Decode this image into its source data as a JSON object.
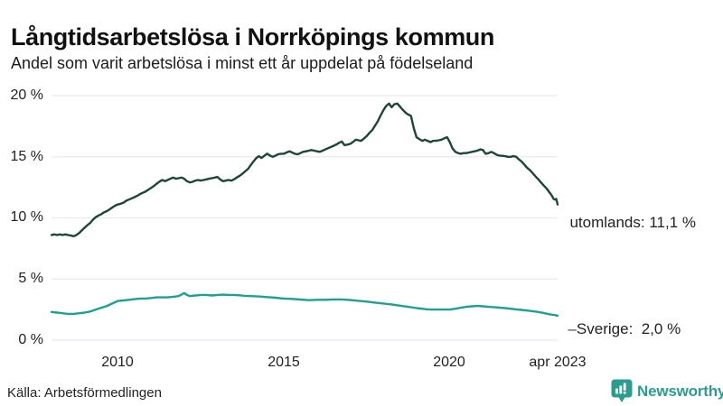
{
  "header": {
    "title": "Långtidsarbetslösa i Norrköpings kommun",
    "subtitle": "Andel som varit arbetslösa i minst ett år uppdelat på födelseland"
  },
  "footer": {
    "source": "Källa: Arbetsförmedlingen",
    "brand": "Newsworthy"
  },
  "colors": {
    "series_utomlands": "#1d4638",
    "series_sverige": "#1fa191",
    "gridline": "#e9e9f0",
    "text": "#222222",
    "logo_teal": "#2a9d8f"
  },
  "chart_data": {
    "type": "line",
    "title": "Långtidsarbetslösa i Norrköpings kommun",
    "subtitle": "Andel som varit arbetslösa i minst ett år uppdelat på födelseland",
    "xlabel": "",
    "ylabel": "",
    "unit": "%",
    "grid": "horizontal",
    "legend_position": "end-of-line-labels",
    "xlim": [
      2008.0,
      2023.25
    ],
    "ylim": [
      0,
      20
    ],
    "yticks": [
      {
        "value": 20,
        "label": "20 %"
      },
      {
        "value": 15,
        "label": "15 %"
      },
      {
        "value": 10,
        "label": "10 %"
      },
      {
        "value": 5,
        "label": "5 %"
      },
      {
        "value": 0,
        "label": "0 %"
      }
    ],
    "xticks": [
      {
        "value": 2010,
        "label": "2010"
      },
      {
        "value": 2015,
        "label": "2015"
      },
      {
        "value": 2020,
        "label": "2020"
      },
      {
        "value": 2023.25,
        "label": "apr 2023"
      }
    ],
    "series": [
      {
        "name": "utomlands",
        "label": "utomlands: 11,1 %",
        "label_prefix": "",
        "last_value": "11,1 %",
        "color": "#1d4638",
        "points": [
          [
            2008.0,
            8.6
          ],
          [
            2008.08,
            8.65
          ],
          [
            2008.17,
            8.6
          ],
          [
            2008.25,
            8.65
          ],
          [
            2008.33,
            8.6
          ],
          [
            2008.42,
            8.65
          ],
          [
            2008.5,
            8.6
          ],
          [
            2008.58,
            8.55
          ],
          [
            2008.67,
            8.5
          ],
          [
            2008.75,
            8.6
          ],
          [
            2008.83,
            8.75
          ],
          [
            2008.92,
            9.0
          ],
          [
            2009.0,
            9.2
          ],
          [
            2009.08,
            9.4
          ],
          [
            2009.17,
            9.6
          ],
          [
            2009.25,
            9.85
          ],
          [
            2009.33,
            10.05
          ],
          [
            2009.42,
            10.2
          ],
          [
            2009.5,
            10.3
          ],
          [
            2009.58,
            10.45
          ],
          [
            2009.67,
            10.55
          ],
          [
            2009.75,
            10.7
          ],
          [
            2009.83,
            10.85
          ],
          [
            2009.92,
            11.0
          ],
          [
            2010.0,
            11.1
          ],
          [
            2010.08,
            11.15
          ],
          [
            2010.17,
            11.25
          ],
          [
            2010.25,
            11.4
          ],
          [
            2010.33,
            11.5
          ],
          [
            2010.42,
            11.6
          ],
          [
            2010.5,
            11.7
          ],
          [
            2010.58,
            11.8
          ],
          [
            2010.67,
            11.95
          ],
          [
            2010.75,
            12.05
          ],
          [
            2010.83,
            12.15
          ],
          [
            2010.92,
            12.3
          ],
          [
            2011.0,
            12.45
          ],
          [
            2011.08,
            12.6
          ],
          [
            2011.17,
            12.8
          ],
          [
            2011.25,
            12.95
          ],
          [
            2011.33,
            13.1
          ],
          [
            2011.42,
            13.0
          ],
          [
            2011.5,
            13.1
          ],
          [
            2011.58,
            13.2
          ],
          [
            2011.67,
            13.3
          ],
          [
            2011.75,
            13.2
          ],
          [
            2011.83,
            13.25
          ],
          [
            2011.92,
            13.3
          ],
          [
            2012.0,
            13.2
          ],
          [
            2012.08,
            13.0
          ],
          [
            2012.17,
            12.9
          ],
          [
            2012.25,
            12.95
          ],
          [
            2012.33,
            13.05
          ],
          [
            2012.42,
            13.1
          ],
          [
            2012.5,
            13.05
          ],
          [
            2012.58,
            13.1
          ],
          [
            2012.67,
            13.15
          ],
          [
            2012.75,
            13.2
          ],
          [
            2012.83,
            13.25
          ],
          [
            2012.92,
            13.3
          ],
          [
            2013.0,
            13.35
          ],
          [
            2013.08,
            13.15
          ],
          [
            2013.17,
            13.0
          ],
          [
            2013.25,
            13.05
          ],
          [
            2013.33,
            13.1
          ],
          [
            2013.42,
            13.05
          ],
          [
            2013.5,
            13.15
          ],
          [
            2013.58,
            13.3
          ],
          [
            2013.67,
            13.45
          ],
          [
            2013.75,
            13.6
          ],
          [
            2013.83,
            13.8
          ],
          [
            2013.92,
            14.0
          ],
          [
            2014.0,
            14.3
          ],
          [
            2014.08,
            14.6
          ],
          [
            2014.17,
            14.9
          ],
          [
            2014.25,
            15.05
          ],
          [
            2014.33,
            14.9
          ],
          [
            2014.42,
            15.1
          ],
          [
            2014.5,
            15.25
          ],
          [
            2014.58,
            15.1
          ],
          [
            2014.67,
            15.0
          ],
          [
            2014.75,
            15.1
          ],
          [
            2014.83,
            15.2
          ],
          [
            2014.92,
            15.25
          ],
          [
            2015.0,
            15.25
          ],
          [
            2015.08,
            15.35
          ],
          [
            2015.17,
            15.45
          ],
          [
            2015.25,
            15.35
          ],
          [
            2015.33,
            15.25
          ],
          [
            2015.42,
            15.2
          ],
          [
            2015.5,
            15.3
          ],
          [
            2015.58,
            15.4
          ],
          [
            2015.67,
            15.45
          ],
          [
            2015.75,
            15.5
          ],
          [
            2015.83,
            15.55
          ],
          [
            2015.92,
            15.5
          ],
          [
            2016.0,
            15.45
          ],
          [
            2016.08,
            15.4
          ],
          [
            2016.17,
            15.5
          ],
          [
            2016.25,
            15.6
          ],
          [
            2016.33,
            15.7
          ],
          [
            2016.42,
            15.8
          ],
          [
            2016.5,
            15.9
          ],
          [
            2016.58,
            16.0
          ],
          [
            2016.67,
            16.15
          ],
          [
            2016.75,
            16.25
          ],
          [
            2016.83,
            15.95
          ],
          [
            2016.92,
            16.0
          ],
          [
            2017.0,
            16.05
          ],
          [
            2017.08,
            16.2
          ],
          [
            2017.17,
            16.4
          ],
          [
            2017.25,
            16.35
          ],
          [
            2017.33,
            16.3
          ],
          [
            2017.42,
            16.5
          ],
          [
            2017.5,
            16.7
          ],
          [
            2017.58,
            16.95
          ],
          [
            2017.67,
            17.2
          ],
          [
            2017.75,
            17.55
          ],
          [
            2017.83,
            17.9
          ],
          [
            2017.92,
            18.4
          ],
          [
            2018.0,
            18.8
          ],
          [
            2018.08,
            19.15
          ],
          [
            2018.17,
            19.35
          ],
          [
            2018.25,
            19.05
          ],
          [
            2018.33,
            19.3
          ],
          [
            2018.42,
            19.35
          ],
          [
            2018.5,
            19.1
          ],
          [
            2018.58,
            18.85
          ],
          [
            2018.67,
            18.6
          ],
          [
            2018.75,
            18.45
          ],
          [
            2018.83,
            18.35
          ],
          [
            2018.92,
            17.3
          ],
          [
            2019.0,
            16.6
          ],
          [
            2019.08,
            16.45
          ],
          [
            2019.17,
            16.3
          ],
          [
            2019.25,
            16.4
          ],
          [
            2019.33,
            16.3
          ],
          [
            2019.42,
            16.2
          ],
          [
            2019.5,
            16.3
          ],
          [
            2019.58,
            16.3
          ],
          [
            2019.67,
            16.35
          ],
          [
            2019.75,
            16.4
          ],
          [
            2019.83,
            16.5
          ],
          [
            2019.92,
            16.6
          ],
          [
            2020.0,
            16.2
          ],
          [
            2020.08,
            15.7
          ],
          [
            2020.17,
            15.4
          ],
          [
            2020.25,
            15.3
          ],
          [
            2020.33,
            15.25
          ],
          [
            2020.42,
            15.3
          ],
          [
            2020.5,
            15.3
          ],
          [
            2020.58,
            15.35
          ],
          [
            2020.67,
            15.4
          ],
          [
            2020.75,
            15.45
          ],
          [
            2020.83,
            15.5
          ],
          [
            2020.92,
            15.6
          ],
          [
            2021.0,
            15.55
          ],
          [
            2021.08,
            15.25
          ],
          [
            2021.17,
            15.3
          ],
          [
            2021.25,
            15.4
          ],
          [
            2021.33,
            15.3
          ],
          [
            2021.42,
            15.15
          ],
          [
            2021.5,
            15.1
          ],
          [
            2021.58,
            15.08
          ],
          [
            2021.67,
            15.05
          ],
          [
            2021.75,
            15.0
          ],
          [
            2021.83,
            15.0
          ],
          [
            2021.92,
            15.05
          ],
          [
            2022.0,
            15.0
          ],
          [
            2022.08,
            14.8
          ],
          [
            2022.17,
            14.6
          ],
          [
            2022.25,
            14.35
          ],
          [
            2022.33,
            14.1
          ],
          [
            2022.42,
            13.9
          ],
          [
            2022.5,
            13.65
          ],
          [
            2022.58,
            13.4
          ],
          [
            2022.67,
            13.15
          ],
          [
            2022.75,
            12.9
          ],
          [
            2022.83,
            12.65
          ],
          [
            2022.92,
            12.4
          ],
          [
            2023.0,
            12.1
          ],
          [
            2023.08,
            11.8
          ],
          [
            2023.13,
            11.55
          ],
          [
            2023.17,
            11.5
          ],
          [
            2023.21,
            11.55
          ],
          [
            2023.25,
            11.1
          ]
        ]
      },
      {
        "name": "Sverige",
        "label": "Sverige:  2,0 %",
        "label_prefix": "–",
        "last_value": "2,0 %",
        "color": "#1fa191",
        "points": [
          [
            2008.0,
            2.3
          ],
          [
            2008.17,
            2.25
          ],
          [
            2008.33,
            2.2
          ],
          [
            2008.5,
            2.15
          ],
          [
            2008.67,
            2.15
          ],
          [
            2008.83,
            2.2
          ],
          [
            2009.0,
            2.25
          ],
          [
            2009.17,
            2.35
          ],
          [
            2009.33,
            2.5
          ],
          [
            2009.5,
            2.65
          ],
          [
            2009.67,
            2.8
          ],
          [
            2009.83,
            3.0
          ],
          [
            2010.0,
            3.2
          ],
          [
            2010.17,
            3.25
          ],
          [
            2010.33,
            3.3
          ],
          [
            2010.5,
            3.35
          ],
          [
            2010.67,
            3.4
          ],
          [
            2010.83,
            3.4
          ],
          [
            2011.0,
            3.45
          ],
          [
            2011.17,
            3.5
          ],
          [
            2011.33,
            3.5
          ],
          [
            2011.5,
            3.5
          ],
          [
            2011.67,
            3.55
          ],
          [
            2011.83,
            3.6
          ],
          [
            2012.0,
            3.85
          ],
          [
            2012.08,
            3.7
          ],
          [
            2012.17,
            3.6
          ],
          [
            2012.33,
            3.65
          ],
          [
            2012.5,
            3.7
          ],
          [
            2012.67,
            3.7
          ],
          [
            2012.83,
            3.65
          ],
          [
            2013.0,
            3.7
          ],
          [
            2013.17,
            3.72
          ],
          [
            2013.33,
            3.7
          ],
          [
            2013.5,
            3.7
          ],
          [
            2013.67,
            3.67
          ],
          [
            2013.83,
            3.62
          ],
          [
            2014.0,
            3.6
          ],
          [
            2014.25,
            3.57
          ],
          [
            2014.5,
            3.52
          ],
          [
            2014.75,
            3.47
          ],
          [
            2015.0,
            3.4
          ],
          [
            2015.25,
            3.37
          ],
          [
            2015.5,
            3.32
          ],
          [
            2015.75,
            3.27
          ],
          [
            2016.0,
            3.3
          ],
          [
            2016.25,
            3.3
          ],
          [
            2016.5,
            3.33
          ],
          [
            2016.75,
            3.33
          ],
          [
            2017.0,
            3.28
          ],
          [
            2017.25,
            3.22
          ],
          [
            2017.5,
            3.15
          ],
          [
            2017.75,
            3.07
          ],
          [
            2018.0,
            3.0
          ],
          [
            2018.25,
            2.92
          ],
          [
            2018.5,
            2.82
          ],
          [
            2018.75,
            2.72
          ],
          [
            2019.0,
            2.62
          ],
          [
            2019.17,
            2.57
          ],
          [
            2019.33,
            2.52
          ],
          [
            2019.5,
            2.5
          ],
          [
            2019.67,
            2.5
          ],
          [
            2019.83,
            2.5
          ],
          [
            2020.0,
            2.5
          ],
          [
            2020.17,
            2.57
          ],
          [
            2020.33,
            2.65
          ],
          [
            2020.5,
            2.72
          ],
          [
            2020.67,
            2.77
          ],
          [
            2020.83,
            2.8
          ],
          [
            2021.0,
            2.77
          ],
          [
            2021.17,
            2.72
          ],
          [
            2021.33,
            2.7
          ],
          [
            2021.5,
            2.66
          ],
          [
            2021.67,
            2.62
          ],
          [
            2021.83,
            2.57
          ],
          [
            2022.0,
            2.52
          ],
          [
            2022.17,
            2.47
          ],
          [
            2022.33,
            2.42
          ],
          [
            2022.5,
            2.37
          ],
          [
            2022.67,
            2.3
          ],
          [
            2022.83,
            2.22
          ],
          [
            2023.0,
            2.12
          ],
          [
            2023.08,
            2.08
          ],
          [
            2023.17,
            2.05
          ],
          [
            2023.25,
            2.0
          ]
        ]
      }
    ]
  }
}
